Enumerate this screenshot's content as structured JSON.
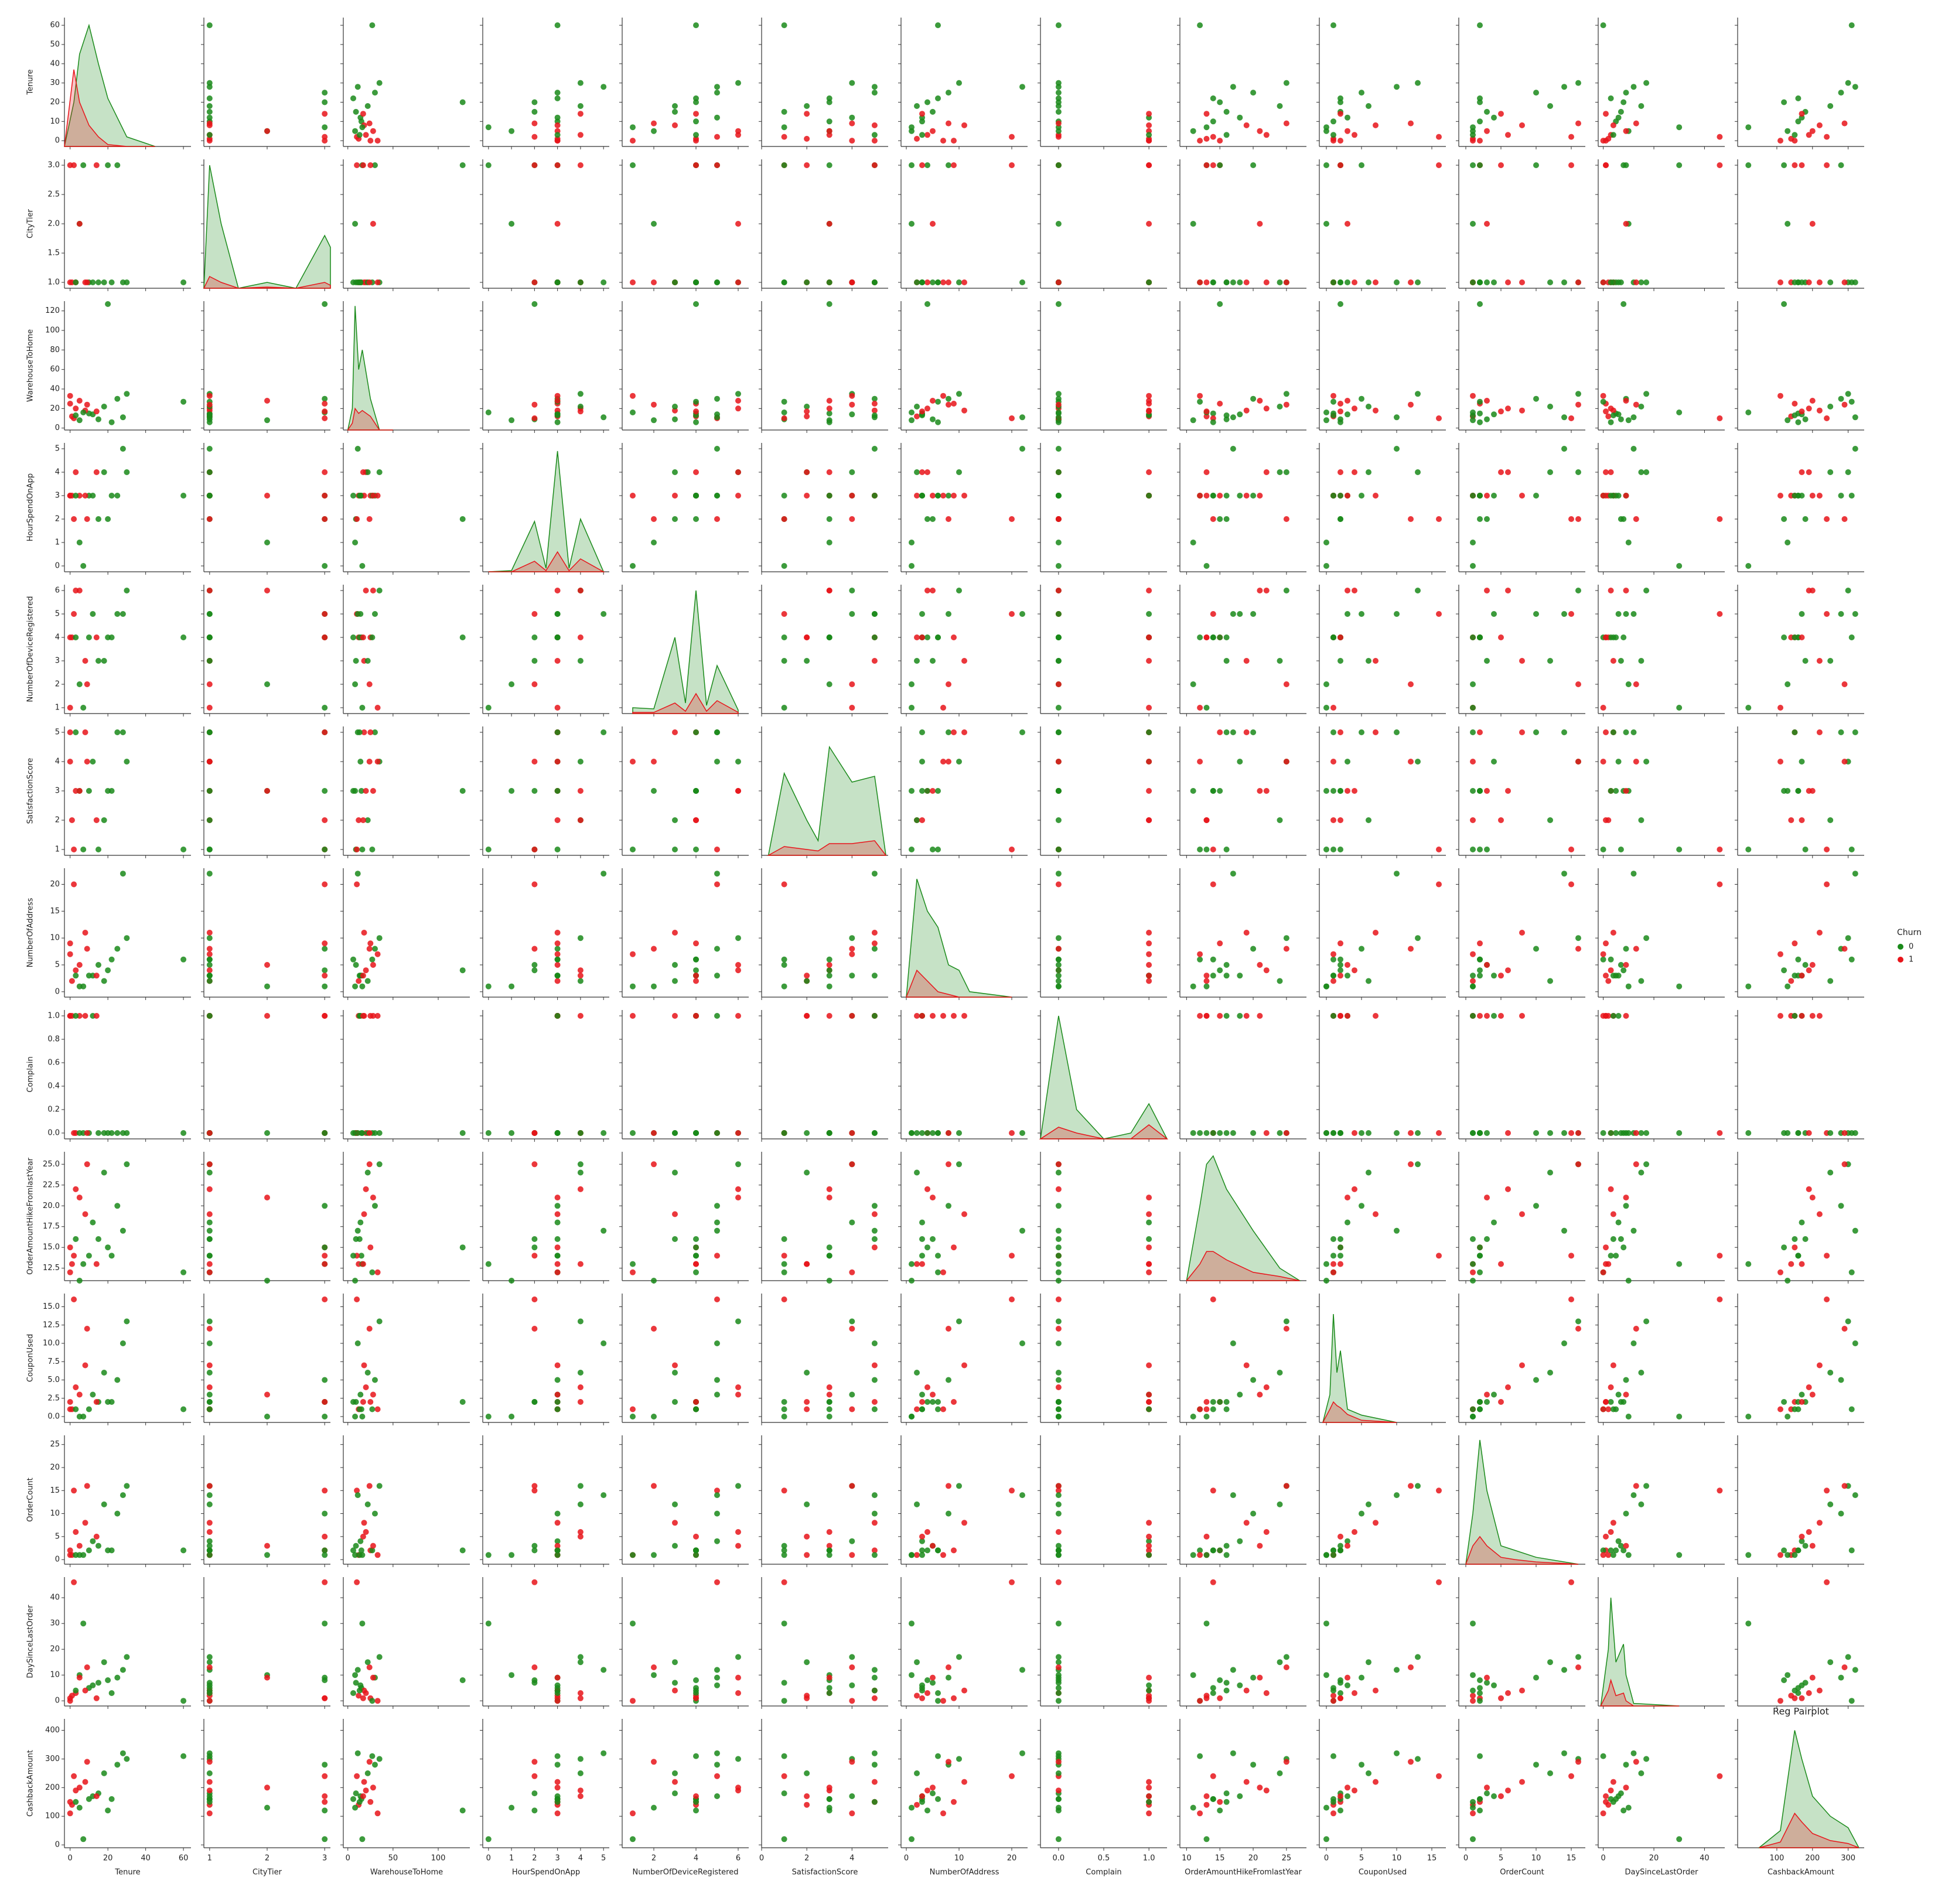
{
  "chart_data": {
    "type": "pairplot",
    "title": "Reg Pairplot",
    "hue": {
      "title": "Churn",
      "levels": [
        {
          "name": "0",
          "color": "#1a8a1a"
        },
        {
          "name": "1",
          "color": "#e8141a"
        }
      ]
    },
    "variables": [
      {
        "name": "Tenure",
        "xlim": [
          -3,
          64
        ],
        "xticks": [
          0,
          20,
          40,
          60
        ],
        "ylim": [
          -3,
          64
        ],
        "yticks": [
          0,
          10,
          20,
          30,
          40,
          50,
          60
        ],
        "kde": {
          "x": [
            -3,
            2,
            5,
            10,
            15,
            20,
            30,
            45
          ],
          "series": [
            [
              -3,
              20,
              45,
              60,
              40,
              22,
              2,
              -3
            ],
            [
              -3,
              37,
              20,
              8,
              2,
              -2,
              -3,
              -3
            ]
          ]
        }
      },
      {
        "name": "CityTier",
        "xlim": [
          0.9,
          3.1
        ],
        "xticks": [
          1,
          2,
          3
        ],
        "ylim": [
          0.9,
          3.1
        ],
        "yticks": [
          {
            "value": 1,
            "label": "1.0"
          },
          {
            "value": 1.5,
            "label": "1.5"
          },
          {
            "value": 2,
            "label": "2.0"
          },
          {
            "value": 2.5,
            "label": "2.5"
          },
          {
            "value": 3,
            "label": "3.0"
          }
        ],
        "kde": {
          "x": [
            0.9,
            1,
            1.2,
            1.5,
            2,
            2.5,
            3,
            3.1
          ],
          "series": [
            [
              0.9,
              3.0,
              2.0,
              0.9,
              1.0,
              0.9,
              1.8,
              1.6
            ],
            [
              0.9,
              1.1,
              1.0,
              0.9,
              0.92,
              0.9,
              1.0,
              0.95
            ]
          ]
        }
      },
      {
        "name": "WarehouseToHome",
        "xlim": [
          -5,
          135
        ],
        "xticks": [
          0,
          50,
          100
        ],
        "ylim": [
          -2,
          130
        ],
        "yticks": [
          0,
          20,
          40,
          60,
          80,
          100,
          120
        ],
        "kde": {
          "x": [
            0,
            5,
            8,
            12,
            16,
            25,
            35,
            50
          ],
          "series": [
            [
              -2,
              20,
              125,
              60,
              80,
              30,
              -2,
              -2
            ],
            [
              -2,
              5,
              20,
              15,
              18,
              12,
              -2,
              -2
            ]
          ]
        }
      },
      {
        "name": "HourSpendOnApp",
        "xlim": [
          -0.25,
          5.25
        ],
        "xticks": [
          0,
          1,
          2,
          3,
          4,
          5
        ],
        "ylim": [
          -0.25,
          5.25
        ],
        "yticks": [
          0,
          1,
          2,
          3,
          4,
          5
        ],
        "kde": {
          "x": [
            0,
            1,
            2,
            2.5,
            3,
            3.5,
            4,
            5
          ],
          "series": [
            [
              -0.25,
              -0.2,
              1.9,
              -0.1,
              4.9,
              -0.1,
              2.0,
              -0.25
            ],
            [
              -0.25,
              -0.25,
              0.2,
              -0.2,
              0.6,
              -0.2,
              0.3,
              -0.25
            ]
          ]
        }
      },
      {
        "name": "NumberOfDeviceRegistered",
        "xlim": [
          0.5,
          6.5
        ],
        "xticks": [
          2,
          4,
          6
        ],
        "ylim": [
          0.75,
          6.25
        ],
        "yticks": [
          1,
          2,
          3,
          4,
          5,
          6
        ],
        "kde": {
          "x": [
            1,
            2,
            3,
            3.5,
            4,
            4.5,
            5,
            6
          ],
          "series": [
            [
              1.0,
              0.95,
              4.0,
              1.2,
              6.0,
              1.1,
              2.8,
              0.9
            ],
            [
              0.8,
              0.8,
              1.2,
              0.85,
              1.6,
              0.85,
              1.3,
              0.8
            ]
          ]
        }
      },
      {
        "name": "SatisfactionScore",
        "xlim": [
          0,
          5.6
        ],
        "xticks": [
          0,
          2,
          4
        ],
        "ylim": [
          0.8,
          5.2
        ],
        "yticks": [
          1,
          2,
          3,
          4,
          5
        ],
        "kde": {
          "x": [
            0.3,
            1,
            2,
            2.5,
            3,
            4,
            5,
            5.5
          ],
          "series": [
            [
              0.8,
              3.6,
              2.0,
              1.3,
              4.5,
              3.3,
              3.5,
              0.8
            ],
            [
              0.8,
              1.1,
              1.0,
              0.95,
              1.2,
              1.2,
              1.3,
              0.8
            ]
          ]
        }
      },
      {
        "name": "NumberOfAddress",
        "xlim": [
          -1,
          23
        ],
        "xticks": [
          0,
          10,
          20
        ],
        "ylim": [
          -1,
          23
        ],
        "yticks": [
          0,
          5,
          10,
          15,
          20
        ],
        "kde": {
          "x": [
            0,
            2,
            4,
            6,
            8,
            10,
            12,
            20
          ],
          "series": [
            [
              -1,
              21,
              15,
              12,
              5,
              4,
              0,
              -1
            ],
            [
              -1,
              4,
              2,
              0,
              -0.5,
              -1,
              -1,
              -1
            ]
          ]
        }
      },
      {
        "name": "Complain",
        "xlim": [
          -0.2,
          1.2
        ],
        "xticks": [
          {
            "value": 0,
            "label": "0.0"
          },
          {
            "value": 0.5,
            "label": "0.5"
          },
          {
            "value": 1,
            "label": "1.0"
          }
        ],
        "ylim": [
          -0.05,
          1.05
        ],
        "yticks": [
          {
            "value": 0,
            "label": "0.0"
          },
          {
            "value": 0.2,
            "label": "0.2"
          },
          {
            "value": 0.4,
            "label": "0.4"
          },
          {
            "value": 0.6,
            "label": "0.6"
          },
          {
            "value": 0.8,
            "label": "0.8"
          },
          {
            "value": 1,
            "label": "1.0"
          }
        ],
        "kde": {
          "x": [
            -0.2,
            0,
            0.2,
            0.5,
            0.8,
            1,
            1.2
          ],
          "series": [
            [
              -0.05,
              1.0,
              0.2,
              -0.05,
              0.0,
              0.25,
              -0.05
            ],
            [
              -0.05,
              0.05,
              0.0,
              -0.05,
              -0.05,
              0.07,
              -0.05
            ]
          ]
        }
      },
      {
        "name": "OrderAmountHikeFromlastYear",
        "xlim": [
          9,
          28
        ],
        "xticks": [
          10,
          15,
          20,
          25
        ],
        "ylim": [
          11,
          26.5
        ],
        "yticks": [
          {
            "value": 12.5,
            "label": "12.5"
          },
          {
            "value": 15,
            "label": "15.0"
          },
          {
            "value": 17.5,
            "label": "17.5"
          },
          {
            "value": 20,
            "label": "20.0"
          },
          {
            "value": 22.5,
            "label": "22.5"
          },
          {
            "value": 25,
            "label": "25.0"
          }
        ],
        "kde": {
          "x": [
            10,
            12,
            13,
            14,
            16,
            20,
            24,
            27
          ],
          "series": [
            [
              11,
              20,
              25,
              26,
              22,
              17,
              12.5,
              11
            ],
            [
              11,
              13,
              14.5,
              14.5,
              13.5,
              12,
              11.5,
              11
            ]
          ]
        }
      },
      {
        "name": "CouponUsed",
        "xlim": [
          -1,
          17
        ],
        "xticks": [
          0,
          5,
          10,
          15
        ],
        "ylim": [
          -0.8,
          16.8
        ],
        "yticks": [
          {
            "value": 0,
            "label": "0.0"
          },
          {
            "value": 2.5,
            "label": "2.5"
          },
          {
            "value": 5,
            "label": "5.0"
          },
          {
            "value": 7.5,
            "label": "7.5"
          },
          {
            "value": 10,
            "label": "10.0"
          },
          {
            "value": 12.5,
            "label": "12.5"
          },
          {
            "value": 15,
            "label": "15.0"
          }
        ],
        "kde": {
          "x": [
            -0.5,
            0.5,
            1,
            1.5,
            2,
            3,
            5,
            10
          ],
          "series": [
            [
              -0.8,
              3,
              14,
              6,
              9,
              1,
              0.2,
              -0.8
            ],
            [
              -0.8,
              1,
              2,
              1.5,
              1.2,
              0.3,
              -0.5,
              -0.8
            ]
          ]
        }
      },
      {
        "name": "OrderCount",
        "xlim": [
          -1,
          17
        ],
        "xticks": [
          0,
          5,
          10,
          15
        ],
        "ylim": [
          -1,
          27
        ],
        "yticks": [
          0,
          5,
          10,
          15,
          20,
          25
        ],
        "kde": {
          "x": [
            0,
            1,
            2,
            3,
            5,
            7,
            10,
            16
          ],
          "series": [
            [
              -1,
              10,
              26,
              15,
              3,
              2,
              0.5,
              -1
            ],
            [
              -1,
              3,
              5,
              3,
              0.5,
              0,
              -0.5,
              -1
            ]
          ]
        }
      },
      {
        "name": "DaySinceLastOrder",
        "xlim": [
          -2,
          48
        ],
        "xticks": [
          0,
          20,
          40
        ],
        "ylim": [
          -2,
          48
        ],
        "yticks": [
          0,
          10,
          20,
          30,
          40
        ],
        "kde": {
          "x": [
            -1,
            2,
            3,
            5,
            8,
            9,
            12,
            30
          ],
          "series": [
            [
              -2,
              20,
              40,
              15,
              22,
              10,
              -1,
              -2
            ],
            [
              -2,
              4,
              8,
              2,
              3,
              0,
              -2,
              -2
            ]
          ]
        }
      },
      {
        "name": "CashbackAmount",
        "xlim": [
          -10,
          345
        ],
        "xticks": [
          100,
          200,
          300
        ],
        "ylim": [
          -10,
          440
        ],
        "yticks": [
          0,
          100,
          200,
          300,
          400
        ],
        "kde": {
          "x": [
            50,
            110,
            150,
            170,
            200,
            250,
            300,
            330
          ],
          "series": [
            [
              -10,
              50,
              400,
              300,
              170,
              100,
              60,
              -10
            ],
            [
              -10,
              10,
              110,
              80,
              40,
              15,
              5,
              -10
            ]
          ]
        }
      }
    ],
    "rows": [
      {
        "churn": 0,
        "values": [
          10,
          1,
          15,
          3,
          4,
          3,
          3,
          0,
          14,
          1,
          2,
          5,
          160
        ]
      },
      {
        "churn": 0,
        "values": [
          25,
          3,
          30,
          3,
          5,
          5,
          8,
          0,
          20,
          5,
          10,
          9,
          280
        ]
      },
      {
        "churn": 1,
        "values": [
          1,
          1,
          12,
          3,
          4,
          2,
          2,
          1,
          13,
          1,
          1,
          2,
          140
        ]
      },
      {
        "churn": 0,
        "values": [
          15,
          1,
          9,
          2,
          3,
          1,
          5,
          0,
          16,
          2,
          3,
          7,
          180
        ]
      },
      {
        "churn": 1,
        "values": [
          0,
          3,
          25,
          3,
          4,
          5,
          9,
          1,
          15,
          2,
          2,
          1,
          150
        ]
      },
      {
        "churn": 0,
        "values": [
          30,
          1,
          35,
          4,
          6,
          4,
          10,
          0,
          25,
          13,
          16,
          17,
          300
        ]
      },
      {
        "churn": 0,
        "values": [
          60,
          1,
          27,
          3,
          4,
          1,
          6,
          0,
          12,
          1,
          2,
          0,
          310
        ]
      },
      {
        "churn": 1,
        "values": [
          3,
          1,
          20,
          4,
          6,
          3,
          4,
          0,
          22,
          4,
          6,
          3,
          190
        ]
      },
      {
        "churn": 0,
        "values": [
          5,
          2,
          8,
          1,
          2,
          3,
          1,
          0,
          11,
          0,
          1,
          10,
          130
        ]
      },
      {
        "churn": 0,
        "values": [
          20,
          3,
          127,
          2,
          4,
          3,
          4,
          0,
          15,
          2,
          2,
          8,
          120
        ]
      },
      {
        "churn": 1,
        "values": [
          8,
          1,
          18,
          3,
          3,
          5,
          11,
          1,
          19,
          7,
          8,
          4,
          220
        ]
      },
      {
        "churn": 0,
        "values": [
          12,
          1,
          14,
          3,
          5,
          4,
          3,
          1,
          18,
          3,
          4,
          6,
          170
        ]
      },
      {
        "churn": 1,
        "values": [
          2,
          3,
          10,
          2,
          5,
          1,
          20,
          0,
          14,
          16,
          15,
          46,
          240
        ]
      },
      {
        "churn": 0,
        "values": [
          18,
          1,
          22,
          4,
          3,
          2,
          2,
          0,
          24,
          6,
          12,
          15,
          250
        ]
      },
      {
        "churn": 1,
        "values": [
          0,
          1,
          33,
          3,
          1,
          4,
          7,
          1,
          12,
          1,
          1,
          0,
          110
        ]
      },
      {
        "churn": 0,
        "values": [
          7,
          3,
          16,
          0,
          1,
          1,
          1,
          0,
          13,
          0,
          1,
          30,
          20
        ]
      },
      {
        "churn": 0,
        "values": [
          28,
          1,
          11,
          5,
          5,
          5,
          22,
          0,
          17,
          10,
          14,
          12,
          320
        ]
      },
      {
        "churn": 1,
        "values": [
          5,
          2,
          28,
          3,
          6,
          3,
          5,
          1,
          21,
          3,
          3,
          9,
          200
        ]
      },
      {
        "churn": 0,
        "values": [
          22,
          1,
          6,
          3,
          4,
          3,
          6,
          0,
          14,
          2,
          2,
          3,
          160
        ]
      },
      {
        "churn": 1,
        "values": [
          9,
          1,
          24,
          2,
          2,
          4,
          8,
          0,
          25,
          12,
          16,
          13,
          290
        ]
      },
      {
        "churn": 0,
        "values": [
          3,
          1,
          13,
          3,
          4,
          5,
          3,
          1,
          16,
          1,
          1,
          4,
          150
        ]
      },
      {
        "churn": 1,
        "values": [
          14,
          3,
          17,
          4,
          4,
          2,
          3,
          1,
          13,
          2,
          5,
          1,
          170
        ]
      }
    ]
  }
}
